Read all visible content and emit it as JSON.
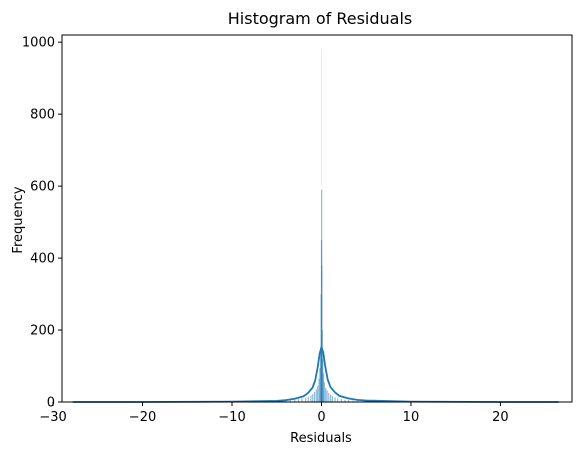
{
  "chart_data": {
    "type": "bar",
    "title": "Histogram of Residuals",
    "xlabel": "Residuals",
    "ylabel": "Frequency",
    "xlim": [
      -29,
      28
    ],
    "ylim": [
      0,
      1020
    ],
    "xticks": [
      -30,
      -20,
      -10,
      0,
      10,
      20
    ],
    "xtick_labels": [
      "−30",
      "−20",
      "−10",
      "0",
      "10",
      "20"
    ],
    "yticks": [
      0,
      200,
      400,
      600,
      800,
      1000
    ],
    "ytick_labels": [
      "0",
      "200",
      "400",
      "600",
      "800",
      "1000"
    ],
    "grid": false,
    "bar_color": "#1f77b4",
    "bar_opacity": 0.5,
    "line_color": "#1f77b4",
    "bins": {
      "x": [
        -4.0,
        -3.5,
        -3.0,
        -2.6,
        -2.2,
        -1.8,
        -1.5,
        -1.2,
        -1.0,
        -0.8,
        -0.6,
        -0.45,
        -0.3,
        -0.2,
        -0.12,
        -0.06,
        -0.02,
        0.0,
        0.02,
        0.06,
        0.12,
        0.2,
        0.3,
        0.45,
        0.6,
        0.8,
        1.0,
        1.2,
        1.5,
        1.8,
        2.2,
        2.6,
        3.0,
        3.5,
        4.0,
        5.0
      ],
      "y": [
        3,
        4,
        6,
        8,
        10,
        12,
        15,
        18,
        22,
        28,
        35,
        45,
        65,
        95,
        150,
        300,
        450,
        590,
        380,
        200,
        120,
        80,
        55,
        40,
        32,
        25,
        20,
        16,
        13,
        10,
        8,
        6,
        5,
        4,
        3,
        2
      ]
    },
    "faint_bin": {
      "x": 0.0,
      "y": 980
    },
    "kde": {
      "x": [
        -27.8,
        -20,
        -10,
        -5,
        -4,
        -3,
        -2,
        -1.5,
        -1.0,
        -0.7,
        -0.4,
        -0.2,
        0.0,
        0.2,
        0.4,
        0.7,
        1.0,
        1.5,
        2,
        3,
        4,
        5,
        10,
        20,
        26.5
      ],
      "y": [
        0,
        0,
        1,
        3,
        5,
        9,
        16,
        25,
        40,
        60,
        100,
        135,
        152,
        138,
        102,
        62,
        42,
        27,
        17,
        10,
        6,
        4,
        1,
        0,
        0
      ]
    }
  }
}
